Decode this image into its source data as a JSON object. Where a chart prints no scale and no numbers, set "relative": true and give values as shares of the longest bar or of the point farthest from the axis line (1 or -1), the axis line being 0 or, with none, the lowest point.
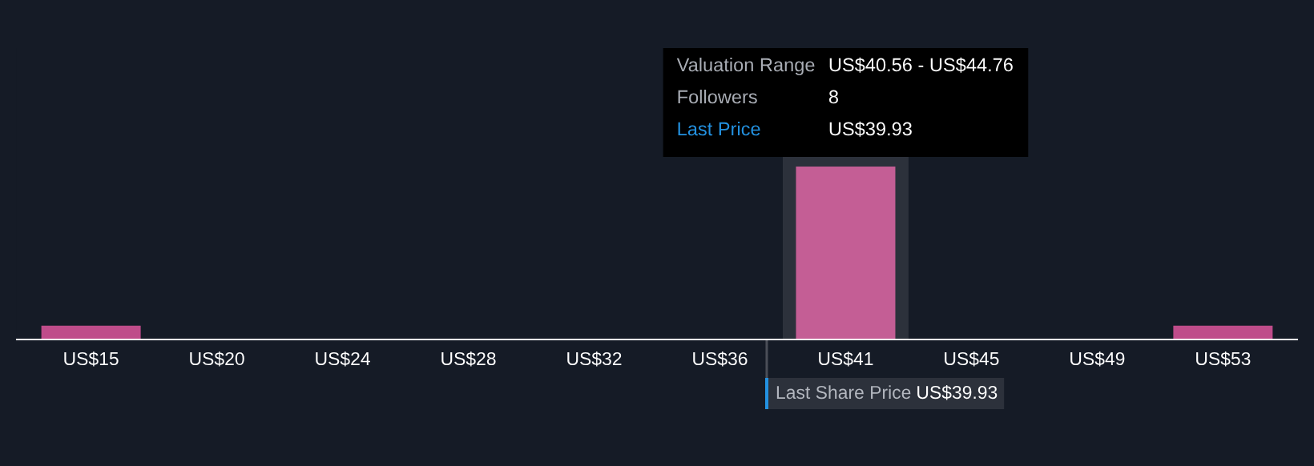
{
  "chart_data": {
    "type": "bar",
    "categories": [
      "US$15",
      "US$20",
      "US$24",
      "US$28",
      "US$32",
      "US$36",
      "US$41",
      "US$45",
      "US$49",
      "US$53"
    ],
    "values": [
      0.08,
      0,
      0,
      0,
      0,
      0,
      1,
      0,
      0,
      0.08
    ],
    "relative": true,
    "colors": [
      "#bf4c8a",
      "#bf4c8a",
      "#bf4c8a",
      "#bf4c8a",
      "#bf4c8a",
      "#bf4c8a",
      "#c45e95",
      "#bf4c8a",
      "#bf4c8a",
      "#bf4c8a"
    ],
    "tick_labels": "x",
    "bands": [
      {
        "axis": "x",
        "from": "US$41",
        "to": "US$41",
        "color": "#2c313b"
      }
    ],
    "annotations": [
      "Valuation Range",
      "US$40.56 - US$44.76",
      "Followers",
      "8",
      "Last Price",
      "US$39.93",
      "Last Share Price",
      "US$39.93"
    ],
    "grid": false
  }
}
